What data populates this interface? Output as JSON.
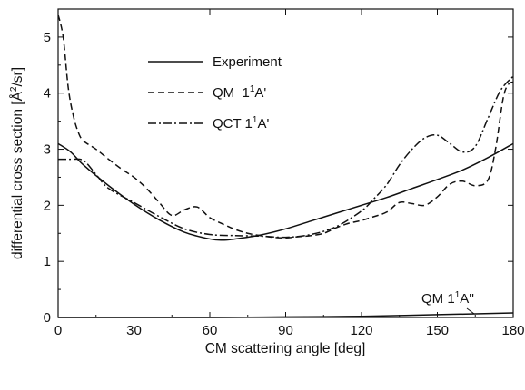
{
  "chart_data": {
    "type": "line",
    "xlabel": "CM scattering angle [deg]",
    "ylabel": {
      "pre": "differential cross section [Å",
      "sup": "2",
      "post": "/sr]"
    },
    "xlim": [
      0,
      180
    ],
    "ylim": [
      0,
      5.5
    ],
    "xticks": [
      0,
      30,
      60,
      90,
      120,
      150,
      180
    ],
    "yticks": [
      0,
      1,
      2,
      3,
      4,
      5
    ],
    "grid": false,
    "legend_position": "top-left",
    "series": [
      {
        "name": {
          "pre": "Experiment",
          "sup": "",
          "post": ""
        },
        "style": "solid",
        "x": [
          0,
          5,
          10,
          20,
          30,
          40,
          50,
          60,
          65,
          70,
          80,
          90,
          100,
          110,
          120,
          130,
          140,
          150,
          160,
          170,
          180
        ],
        "y": [
          3.1,
          2.95,
          2.72,
          2.35,
          2.02,
          1.74,
          1.52,
          1.4,
          1.38,
          1.4,
          1.47,
          1.58,
          1.72,
          1.86,
          2.0,
          2.14,
          2.3,
          2.46,
          2.63,
          2.85,
          3.1
        ]
      },
      {
        "name": {
          "pre": "QM  1",
          "sup": "1",
          "post": "A'"
        },
        "style": "dashed",
        "x": [
          0,
          2,
          4,
          6,
          8,
          10,
          15,
          20,
          25,
          30,
          35,
          40,
          45,
          50,
          55,
          60,
          65,
          70,
          75,
          80,
          85,
          90,
          95,
          100,
          105,
          110,
          115,
          120,
          125,
          130,
          135,
          140,
          145,
          150,
          155,
          160,
          165,
          170,
          173,
          176,
          178,
          180
        ],
        "y": [
          5.4,
          5.0,
          4.1,
          3.6,
          3.3,
          3.15,
          3.0,
          2.82,
          2.65,
          2.5,
          2.3,
          2.05,
          1.82,
          1.92,
          1.97,
          1.78,
          1.67,
          1.57,
          1.5,
          1.46,
          1.43,
          1.42,
          1.44,
          1.46,
          1.5,
          1.6,
          1.68,
          1.73,
          1.8,
          1.88,
          2.05,
          2.03,
          2.0,
          2.15,
          2.38,
          2.43,
          2.35,
          2.45,
          3.0,
          3.9,
          4.15,
          4.2
        ]
      },
      {
        "name": {
          "pre": "QCT 1",
          "sup": "1",
          "post": "A'"
        },
        "style": "dashdot",
        "x": [
          0,
          5,
          10,
          15,
          20,
          30,
          40,
          50,
          60,
          70,
          80,
          90,
          100,
          110,
          120,
          125,
          130,
          135,
          140,
          145,
          150,
          155,
          160,
          165,
          170,
          175,
          180
        ],
        "y": [
          2.82,
          2.82,
          2.8,
          2.55,
          2.3,
          2.05,
          1.8,
          1.58,
          1.48,
          1.46,
          1.45,
          1.43,
          1.48,
          1.62,
          1.9,
          2.12,
          2.37,
          2.72,
          3.0,
          3.2,
          3.25,
          3.1,
          2.95,
          3.05,
          3.55,
          4.05,
          4.3
        ]
      },
      {
        "name": {
          "pre": "QM 1",
          "sup": "1",
          "post": "A''"
        },
        "style": "solid",
        "x": [
          0,
          60,
          90,
          120,
          150,
          180
        ],
        "y": [
          0.0,
          0.0,
          0.01,
          0.02,
          0.05,
          0.08
        ]
      }
    ],
    "annotations": [
      {
        "pre": "QM 1",
        "sup": "1",
        "post": "A''"
      }
    ]
  }
}
